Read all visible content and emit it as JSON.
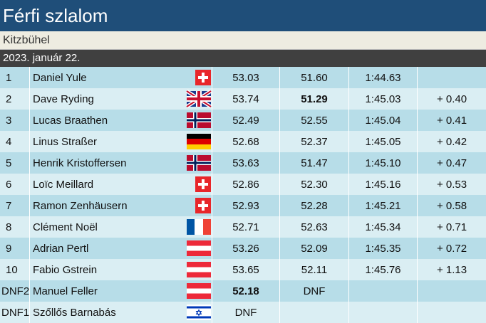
{
  "header": {
    "title": "Férfi szlalom",
    "location": "Kitzbühel",
    "date": "2023. január 22."
  },
  "table": {
    "rows": [
      [
        "1",
        "Daniel Yule",
        "53.03",
        "51.60",
        "1:44.63"
      ],
      [
        "2",
        "Dave Ryding",
        "53.74",
        "51.29",
        "1:45.03",
        "+ 0.40"
      ],
      [
        "3",
        "Lucas Braathen",
        "52.49",
        "52.55",
        "1:45.04",
        "+ 0.41"
      ],
      [
        "4",
        "Linus Straßer",
        "52.68",
        "52.37",
        "1:45.05",
        "+ 0.42"
      ],
      [
        "5",
        "Henrik Kristoffersen",
        "53.63",
        "51.47",
        "1:45.10",
        "+ 0.47"
      ],
      [
        "6",
        "Loïc Meillard",
        "52.86",
        "52.30",
        "1:45.16",
        "+ 0.53"
      ],
      [
        "7",
        "Ramon Zenhäusern",
        "52.93",
        "52.28",
        "1:45.21",
        "+ 0.58"
      ],
      [
        "8",
        "Clément Noël",
        "52.71",
        "52.63",
        "1:45.34",
        "+ 0.71"
      ],
      [
        "9",
        "Adrian Pertl",
        "53.26",
        "52.09",
        "1:45.35",
        "+ 0.72"
      ],
      [
        "10",
        "Fabio Gstrein",
        "53.65",
        "52.11",
        "1:45.76",
        "+ 1.13"
      ],
      [
        "DNF2",
        "Manuel Feller",
        "52.18",
        "DNF"
      ],
      [
        "DNF1",
        "Szőllős Barnabás",
        "DNF"
      ]
    ]
  }
}
